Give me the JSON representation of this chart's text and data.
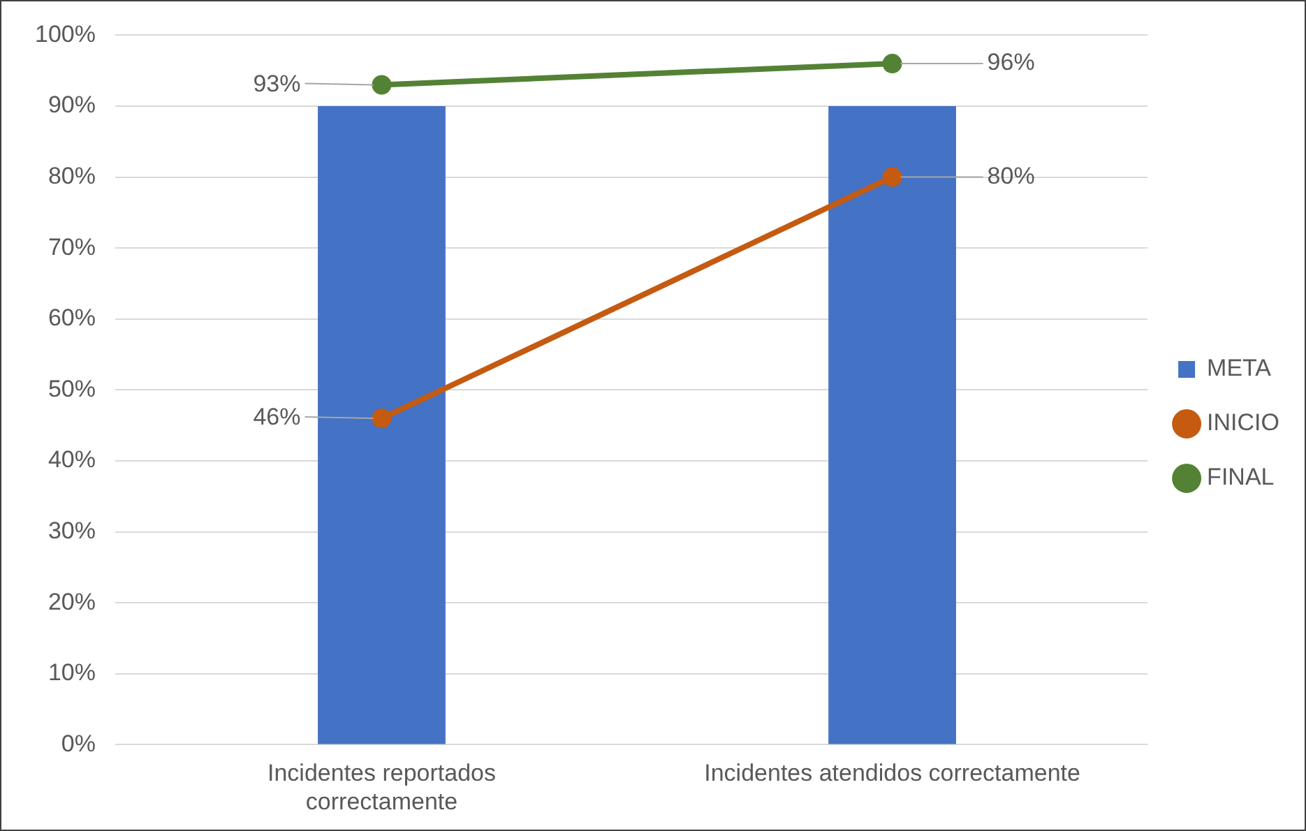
{
  "chart_data": {
    "type": "bar",
    "categories": [
      "Incidentes reportados correctamente",
      "Incidentes atendidos correctamente"
    ],
    "series": [
      {
        "name": "META",
        "color": "#4472c4",
        "values": [
          90,
          90
        ]
      },
      {
        "name": "INICIO",
        "type": "line",
        "color": "#c55a11",
        "values": [
          46,
          80
        ],
        "value_labels": [
          "46%",
          "80%"
        ]
      },
      {
        "name": "FINAL",
        "type": "line",
        "color": "#548235",
        "values": [
          93,
          96
        ],
        "value_labels": [
          "93%",
          "96%"
        ]
      }
    ],
    "ylim": [
      0,
      100
    ],
    "yticks": [
      {
        "value": 0,
        "label": "0%"
      },
      {
        "value": 10,
        "label": "10%"
      },
      {
        "value": 20,
        "label": "20%"
      },
      {
        "value": 30,
        "label": "30%"
      },
      {
        "value": 40,
        "label": "40%"
      },
      {
        "value": 50,
        "label": "50%"
      },
      {
        "value": 60,
        "label": "60%"
      },
      {
        "value": 70,
        "label": "70%"
      },
      {
        "value": 80,
        "label": "80%"
      },
      {
        "value": 90,
        "label": "90%"
      },
      {
        "value": 100,
        "label": "100%"
      }
    ],
    "grid": "y",
    "legend": "right",
    "marker": "circle"
  }
}
